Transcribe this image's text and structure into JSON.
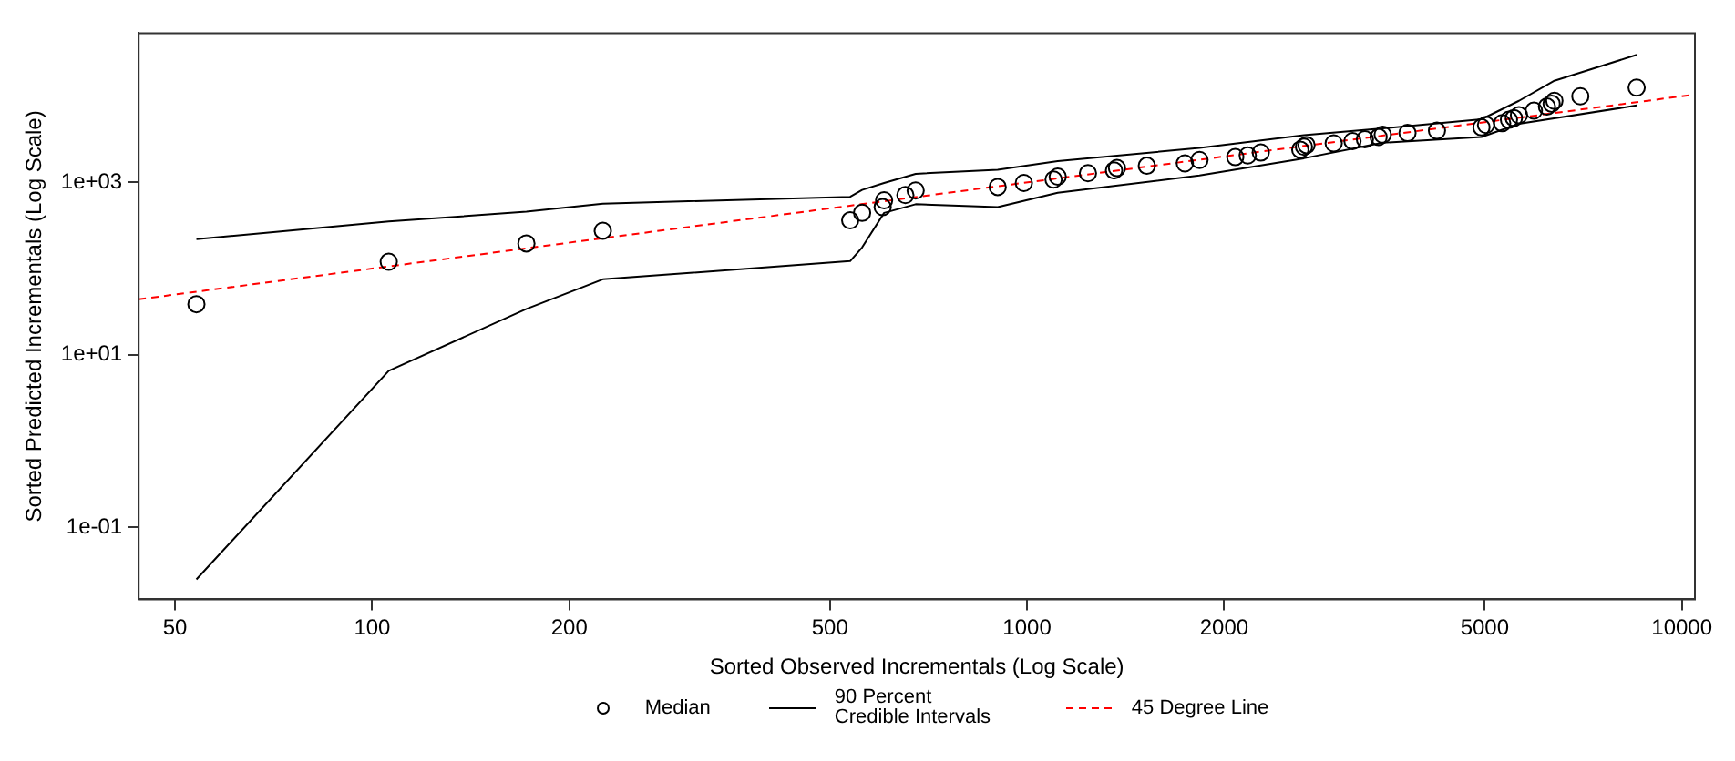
{
  "chart_data": {
    "type": "scatter",
    "xlabel": "Sorted Observed Incrementals (Log Scale)",
    "ylabel": "Sorted Predicted Incrementals (Log Scale)",
    "log": "xy",
    "grid": false,
    "legend": "bottom",
    "xlim": [
      44,
      10470
    ],
    "ylim": [
      0.0145,
      54000
    ],
    "xticks": [
      50,
      100,
      200,
      500,
      1000,
      2000,
      5000,
      10000
    ],
    "yticks": [
      {
        "value": 0.1,
        "label": "1e-01"
      },
      {
        "value": 10,
        "label": "1e+01"
      },
      {
        "value": 1000,
        "label": "1e+03"
      }
    ],
    "series": [
      {
        "name": "Median",
        "marker": "circle",
        "color": "#000000",
        "x": [
          53.9,
          106,
          172,
          225,
          537,
          560,
          602,
          605,
          652,
          676,
          902,
          989,
          1098,
          1114,
          1239,
          1358,
          1372,
          1524,
          1742,
          1834,
          2080,
          2173,
          2275,
          2614,
          2648,
          2672,
          2940,
          3141,
          3281,
          3443,
          3493,
          3811,
          4227,
          4943,
          5023,
          5317,
          5445,
          5540,
          5640,
          5943,
          6223,
          6326,
          6388,
          6998,
          8531
        ],
        "values": [
          38.6,
          120,
          196,
          275,
          363,
          443,
          517,
          621,
          713,
          806,
          885,
          985,
          1080,
          1167,
          1278,
          1380,
          1468,
          1560,
          1660,
          1820,
          1965,
          2057,
          2222,
          2400,
          2590,
          2710,
          2840,
          3020,
          3162,
          3362,
          3575,
          3745,
          3981,
          4365,
          4645,
          4864,
          5333,
          5585,
          6026,
          6808,
          7585,
          8190,
          8850,
          10000,
          12590
        ]
      },
      {
        "name": "90 Percent Credible Intervals",
        "type": "line",
        "marker": "none",
        "color": "#000000",
        "x": [
          53.9,
          106,
          172,
          225,
          537,
          560,
          605,
          676,
          902,
          1114,
          1834,
          2648,
          3493,
          4943,
          5640,
          6388,
          8531
        ],
        "values": [
          219,
          352,
          457,
          567,
          681,
          819,
          985,
          1259,
          1402,
          1766,
          2512,
          3524,
          4236,
          5408,
          8850,
          15140,
          30200
        ]
      },
      {
        "type": "line",
        "marker": "none",
        "color": "#000000",
        "x": [
          53.9,
          106,
          172,
          225,
          537,
          560,
          605,
          676,
          902,
          1114,
          1834,
          2648,
          3493,
          4943,
          5640,
          8531
        ],
        "values": [
          0.0247,
          6.5,
          34,
          75,
          122,
          176,
          443,
          558,
          517,
          759,
          1202,
          1905,
          2884,
          3365,
          4786,
          7816
        ]
      },
      {
        "name": "45 Degree Line",
        "type": "line",
        "marker": "none",
        "line_style": "dashed",
        "color": "#ff0000",
        "x": [
          44,
          10470
        ],
        "values": [
          44,
          10470
        ]
      }
    ]
  }
}
